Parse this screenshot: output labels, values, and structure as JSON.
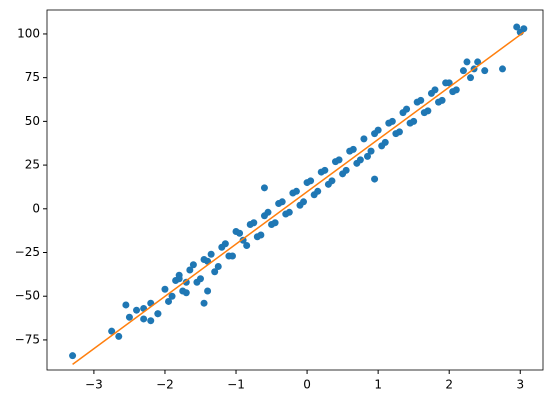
{
  "chart_data": {
    "type": "scatter",
    "xlim": [
      -3.66,
      3.32
    ],
    "ylim": [
      -92.2,
      113.7
    ],
    "xticks": [
      {
        "value": -3,
        "label": "−3"
      },
      {
        "value": -2,
        "label": "−2"
      },
      {
        "value": -1,
        "label": "−1"
      },
      0,
      1,
      2,
      3
    ],
    "yticks": [
      {
        "value": -75,
        "label": "−75"
      },
      {
        "value": -50,
        "label": "−50"
      },
      {
        "value": -25,
        "label": "−25"
      },
      0,
      25,
      50,
      75,
      100
    ],
    "grid": false,
    "series": [
      {
        "kind": "points",
        "color": "#1f77b4",
        "x": [
          -3.3,
          -2.75,
          -2.65,
          -2.55,
          -2.5,
          -2.3,
          -2.1,
          -2.2,
          -1.7,
          -1.8,
          -1.45,
          -1.4,
          -0.6,
          0.95,
          2.35,
          2.75,
          2.95,
          3.05,
          3.0,
          2.25,
          -2.4,
          -2.3,
          -2.2,
          -2.1,
          -2.0,
          -1.9,
          -1.8,
          -1.7,
          -1.6,
          -1.5,
          -1.4,
          -1.3,
          -1.2,
          -1.1,
          -1.0,
          -0.9,
          -0.8,
          -0.7,
          -0.6,
          -0.5,
          -0.4,
          -0.3,
          -0.2,
          -0.1,
          0.0,
          0.1,
          0.2,
          0.3,
          0.4,
          0.5,
          0.6,
          0.7,
          0.8,
          0.9,
          1.0,
          1.1,
          1.2,
          1.3,
          1.4,
          1.5,
          1.6,
          1.7,
          1.8,
          1.9,
          2.0,
          2.1,
          2.2,
          2.3,
          2.4,
          2.5,
          -1.95,
          -1.85,
          -1.75,
          -1.65,
          -1.55,
          -1.45,
          -1.35,
          -1.25,
          -1.15,
          -1.05,
          -0.95,
          -0.85,
          -0.75,
          -0.65,
          -0.55,
          -0.45,
          -0.35,
          -0.25,
          -0.15,
          -0.05,
          0.05,
          0.15,
          0.25,
          0.35,
          0.45,
          0.55,
          0.65,
          0.75,
          0.85,
          0.95,
          1.05,
          1.15,
          1.25,
          1.35,
          1.45,
          1.55,
          1.65,
          1.75,
          1.85,
          1.95,
          2.05
        ],
        "values": [
          -84,
          -70,
          -73,
          -55,
          -62,
          -57,
          -60,
          -64,
          -48,
          -38,
          -54,
          -47,
          12,
          17,
          80,
          80,
          104,
          103,
          101,
          84,
          -58,
          -63,
          -54,
          -60,
          -46,
          -50,
          -40,
          -42,
          -32,
          -40,
          -30,
          -36,
          -22,
          -27,
          -13,
          -18,
          -9,
          -16,
          -4,
          -9,
          3,
          -3,
          9,
          2,
          15,
          8,
          21,
          14,
          27,
          20,
          33,
          26,
          40,
          33,
          45,
          38,
          50,
          44,
          57,
          50,
          62,
          56,
          68,
          62,
          72,
          68,
          79,
          75,
          84,
          79,
          -53,
          -41,
          -47,
          -35,
          -42,
          -29,
          -26,
          -33,
          -20,
          -27,
          -14,
          -21,
          -8,
          -15,
          -2,
          -8,
          4,
          -2,
          10,
          4,
          16,
          10,
          22,
          16,
          28,
          22,
          34,
          28,
          30,
          43,
          36,
          49,
          43,
          55,
          49,
          61,
          55,
          66,
          61,
          72,
          67
        ]
      },
      {
        "kind": "line",
        "color": "#ff7f0e",
        "x": [
          -3.3,
          3.05
        ],
        "values": [
          -89,
          101
        ]
      }
    ]
  }
}
